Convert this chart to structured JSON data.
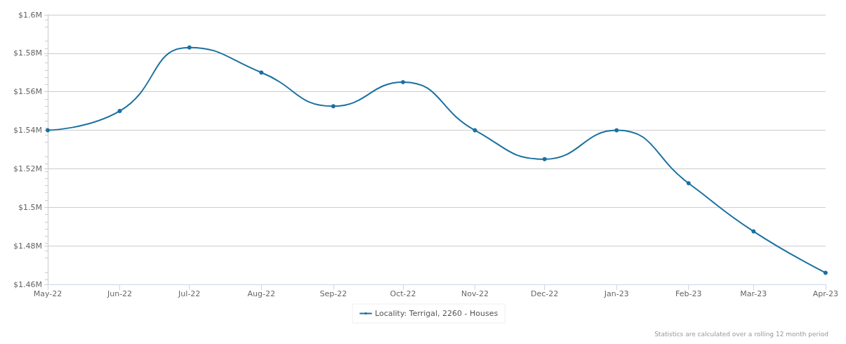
{
  "chart_data": {
    "type": "line",
    "x": [
      "2022-05",
      "2022-06",
      "2022-07",
      "2022-08",
      "2022-09",
      "2022-10",
      "2022-11",
      "2022-12",
      "2023-01",
      "2023-02",
      "2023-03",
      "2023-04"
    ],
    "series": [
      {
        "name": "Locality: Terrigal, 2260 - Houses",
        "color": "#1a70a0",
        "values": [
          1.54,
          1.55,
          1.583,
          1.57,
          1.5525,
          1.565,
          1.54,
          1.525,
          1.54,
          1.5125,
          1.4875,
          1.466
        ]
      }
    ],
    "xlim": [
      "2022-05",
      "2023-04"
    ],
    "xticks": [
      {
        "value": "2022-05",
        "label": "May-22"
      },
      {
        "value": "2022-06",
        "label": "Jun-22"
      },
      {
        "value": "2022-07",
        "label": "Jul-22"
      },
      {
        "value": "2022-08",
        "label": "Aug-22"
      },
      {
        "value": "2022-09",
        "label": "Sep-22"
      },
      {
        "value": "2022-10",
        "label": "Oct-22"
      },
      {
        "value": "2022-11",
        "label": "Nov-22"
      },
      {
        "value": "2022-12",
        "label": "Dec-22"
      },
      {
        "value": "2023-01",
        "label": "Jan-23"
      },
      {
        "value": "2023-02",
        "label": "Feb-23"
      },
      {
        "value": "2023-03",
        "label": "Mar-23"
      },
      {
        "value": "2023-04",
        "label": "Apr-23"
      }
    ],
    "ylim": [
      1.46,
      1.6
    ],
    "yticks": [
      {
        "value": 1.46,
        "label": "$1.46M"
      },
      {
        "value": 1.48,
        "label": "$1.48M"
      },
      {
        "value": 1.5,
        "label": "$1.5M"
      },
      {
        "value": 1.52,
        "label": "$1.52M"
      },
      {
        "value": 1.54,
        "label": "$1.54M"
      },
      {
        "value": 1.56,
        "label": "$1.56M"
      },
      {
        "value": 1.58,
        "label": "$1.58M"
      },
      {
        "value": 1.6,
        "label": "$1.6M"
      }
    ],
    "grid": "y",
    "legend": "bottom",
    "marker": "circle",
    "line_style": "solid",
    "annotations": [
      "Statistics are calculated over a rolling 12 month period"
    ]
  }
}
